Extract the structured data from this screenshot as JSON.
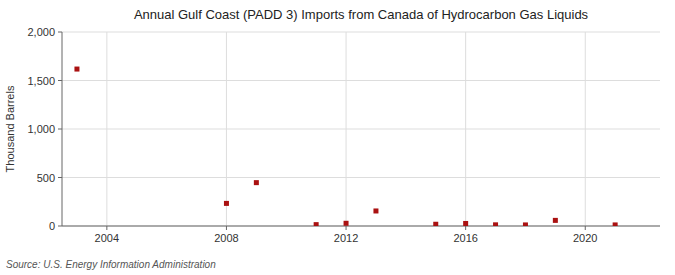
{
  "chart_data": {
    "type": "scatter",
    "title": "Annual Gulf Coast (PADD 3) Imports from Canada of Hydrocarbon Gas Liquids",
    "ylabel": "Thousand Barrels",
    "source": "Source: U.S. Energy Information Administration",
    "x": [
      2003,
      2008,
      2009,
      2011,
      2012,
      2013,
      2015,
      2016,
      2017,
      2018,
      2019,
      2021
    ],
    "values": [
      1618,
      233,
      447,
      14,
      28,
      155,
      18,
      26,
      12,
      11,
      58,
      11
    ],
    "color": "#aa1111",
    "marker": "square",
    "xlim": [
      2002.5,
      2022.5
    ],
    "xticks": [
      2004,
      2008,
      2012,
      2016,
      2020
    ],
    "ylim": [
      0,
      2000
    ],
    "yticks": [
      0,
      500,
      {
        "value": 1000,
        "label": "1,000"
      },
      {
        "value": 1500,
        "label": "1,500"
      },
      {
        "value": 2000,
        "label": "2,000"
      }
    ],
    "grid": true
  }
}
